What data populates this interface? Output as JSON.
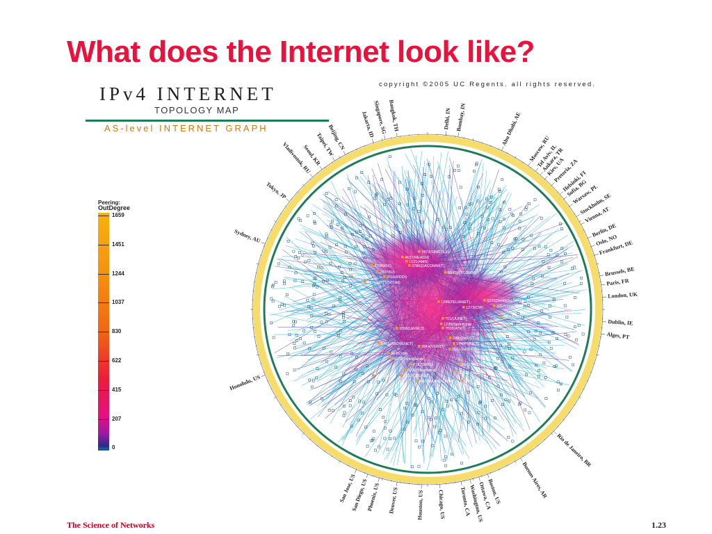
{
  "slide": {
    "title": "What does the Internet look like?",
    "footer_left": "The Science of Networks",
    "page_number": "1.23"
  },
  "map": {
    "heading_main": "IPv4 INTERNET",
    "heading_sub": "TOPOLOGY MAP",
    "heading_graph": "AS-level INTERNET GRAPH",
    "copyright": "copyright ©2005 UC Regents. all rights reserved.",
    "colors": {
      "title": "#e8123c",
      "ring_green": "#1e7b57",
      "ring_yellow": "#f5d75a",
      "links_cyan": "#22a9d4",
      "core_magenta": "#e3127f",
      "core_purple": "#5a2a9a"
    },
    "legend": {
      "title": "Peering:",
      "subtitle": "OutDegree",
      "ticks": [
        "1659",
        "1451",
        "1244",
        "1037",
        "830",
        "622",
        "415",
        "207",
        "0"
      ]
    },
    "cities": [
      {
        "name": "Bangkok, TH",
        "angle": -100
      },
      {
        "name": "Singapore, SG",
        "angle": -104
      },
      {
        "name": "Jakarta, ID",
        "angle": -108
      },
      {
        "name": "Beijing, CN",
        "angle": -118
      },
      {
        "name": "Taipei, TW",
        "angle": -122
      },
      {
        "name": "Seoul, KR",
        "angle": -127
      },
      {
        "name": "Vladivostok, RU",
        "angle": -131
      },
      {
        "name": "Tokyo, JP",
        "angle": -142
      },
      {
        "name": "Sydney, AU",
        "angle": -158
      },
      {
        "name": "Honolulu, US",
        "angle": 158
      },
      {
        "name": "San Jose, US",
        "angle": 114
      },
      {
        "name": "San Diego, US",
        "angle": 110
      },
      {
        "name": "Phoenix, US",
        "angle": 106
      },
      {
        "name": "Denver, US",
        "angle": 100
      },
      {
        "name": "Houston, US",
        "angle": 92
      },
      {
        "name": "Chicago, US",
        "angle": 86
      },
      {
        "name": "Toronto, CA",
        "angle": 79
      },
      {
        "name": "Washington, US",
        "angle": 76
      },
      {
        "name": "Ottawa, CA",
        "angle": 73
      },
      {
        "name": "Boston, US",
        "angle": 70
      },
      {
        "name": "Buenos Aires, AR",
        "angle": 58
      },
      {
        "name": "Rio de Janeiro, BR",
        "angle": 44
      },
      {
        "name": "Alges, PT",
        "angle": 8
      },
      {
        "name": "Dublin, IE",
        "angle": 4
      },
      {
        "name": "London, UK",
        "angle": -4
      },
      {
        "name": "Paris, FR",
        "angle": -8
      },
      {
        "name": "Brussels, BE",
        "angle": -11
      },
      {
        "name": "Frankfurt, DE",
        "angle": -18
      },
      {
        "name": "Oslo, NO",
        "angle": -21
      },
      {
        "name": "Berlin, DE",
        "angle": -24
      },
      {
        "name": "Vienna, AT",
        "angle": -29
      },
      {
        "name": "Stockholm, SE",
        "angle": -32
      },
      {
        "name": "Warsaw, PL",
        "angle": -36
      },
      {
        "name": "Sofia, BG",
        "angle": -39
      },
      {
        "name": "Helsinki, FI",
        "angle": -41
      },
      {
        "name": "Pretoria, ZA",
        "angle": -45
      },
      {
        "name": "Kiev, UA",
        "angle": -48
      },
      {
        "name": "Ankara, TR",
        "angle": -50
      },
      {
        "name": "Tel Aviv, IL",
        "angle": -52
      },
      {
        "name": "Moscow, RU",
        "angle": -55
      },
      {
        "name": "Abu Dhabi, AE",
        "angle": -65
      },
      {
        "name": "Bombay, IN",
        "angle": -80
      },
      {
        "name": "Delhi, IN",
        "angle": -84
      }
    ],
    "as_labels": [
      {
        "name": "7473(SINGTEL)",
        "dx": -10,
        "dy": -82
      },
      {
        "name": "4637(REACH)",
        "dx": -34,
        "dy": -74
      },
      {
        "name": "1021(AMN)",
        "dx": -28,
        "dy": -68
      },
      {
        "name": "4788(KIX)",
        "dx": -78,
        "dy": -62
      },
      {
        "name": "3786(DACOMNET)",
        "dx": -24,
        "dy": -62
      },
      {
        "name": "2497(IIJ)",
        "dx": -70,
        "dy": -53
      },
      {
        "name": "2516(KDDI)",
        "dx": -60,
        "dy": -46
      },
      {
        "name": "7474(OPTUSCOM)",
        "dx": -88,
        "dy": -38
      },
      {
        "name": "8342(RTCOMM)",
        "dx": 28,
        "dy": -52
      },
      {
        "name": "3320(DeutscheTelekom)",
        "dx": 84,
        "dy": -12
      },
      {
        "name": "1299(TELIANET)",
        "dx": 18,
        "dy": -10
      },
      {
        "name": "3257(TISCALI)",
        "dx": 98,
        "dy": -4
      },
      {
        "name": "1273(CW)",
        "dx": 54,
        "dy": -2
      },
      {
        "name": "5486(LINX)",
        "dx": 108,
        "dy": 12
      },
      {
        "name": "3356(LEVEL3)",
        "dx": -42,
        "dy": 28
      },
      {
        "name": "209(QWEST)",
        "dx": 35,
        "dy": 42
      },
      {
        "name": "174(PSINET)",
        "dx": 40,
        "dy": 50
      },
      {
        "name": "3561(SAVVIS)",
        "dx": 34,
        "dy": 58
      },
      {
        "name": "6461(ABOVENET)",
        "dx": -68,
        "dy": 50
      },
      {
        "name": "2914(VERIO)",
        "dx": -10,
        "dy": 54
      },
      {
        "name": "2828(XO)",
        "dx": -54,
        "dy": 64
      },
      {
        "name": "4323(TimeWarner)",
        "dx": -50,
        "dy": 72
      },
      {
        "name": "7132(SBIS)",
        "dx": -22,
        "dy": 80
      },
      {
        "name": "6395(Broadwing)",
        "dx": -30,
        "dy": 88
      },
      {
        "name": "3549(GBLX)",
        "dx": 48,
        "dy": 80
      },
      {
        "name": "701(UUNET)",
        "dx": 24,
        "dy": 14
      },
      {
        "name": "1239(SprintLink)",
        "dx": 22,
        "dy": 22
      },
      {
        "name": "7018(AT&T)",
        "dx": 24,
        "dy": 28
      },
      {
        "name": "3491(BTN)",
        "dx": 52,
        "dy": 104
      },
      {
        "name": "3650(ELIX)",
        "dx": -76,
        "dy": 96
      },
      {
        "name": "2152(CSUNET)",
        "dx": -36,
        "dy": 96
      },
      {
        "name": "2032(USNET)",
        "dx": 44,
        "dy": 92
      },
      {
        "name": "6939(HURRICANE)",
        "dx": -12,
        "dy": 104
      }
    ]
  }
}
